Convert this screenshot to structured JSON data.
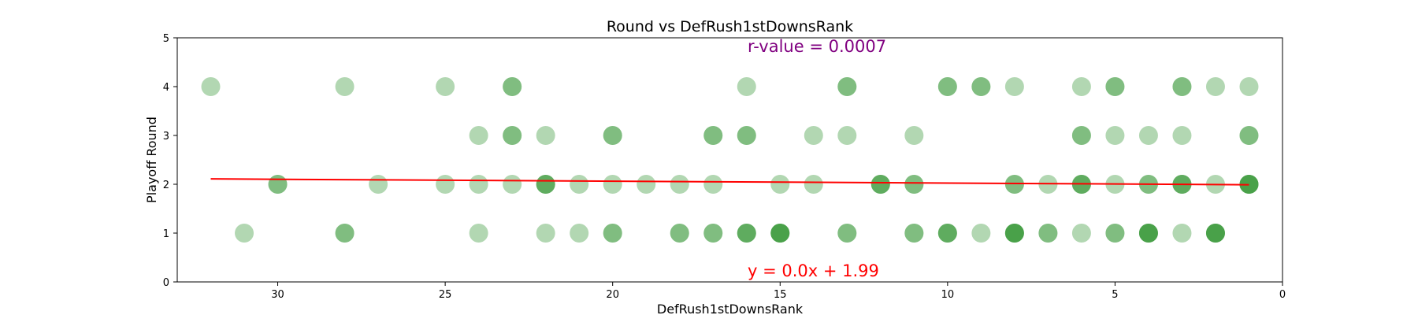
{
  "chart_data": {
    "type": "scatter",
    "title": "Round vs DefRush1stDownsRank",
    "xlabel": "DefRush1stDownsRank",
    "ylabel": "Playoff Round",
    "xlim": [
      33,
      0
    ],
    "ylim": [
      0,
      5
    ],
    "x_inverted": true,
    "xticks": [
      30,
      25,
      20,
      15,
      10,
      5,
      0
    ],
    "yticks": [
      0,
      1,
      2,
      3,
      4,
      5
    ],
    "marker_color": "#228b22",
    "marker_alpha": 0.35,
    "line_color": "#ff0000",
    "points": [
      {
        "x": 32,
        "y": 4
      },
      {
        "x": 28,
        "y": 4
      },
      {
        "x": 25,
        "y": 4
      },
      {
        "x": 23,
        "y": 4
      },
      {
        "x": 23,
        "y": 4
      },
      {
        "x": 16,
        "y": 4
      },
      {
        "x": 13,
        "y": 4
      },
      {
        "x": 13,
        "y": 4
      },
      {
        "x": 10,
        "y": 4
      },
      {
        "x": 10,
        "y": 4
      },
      {
        "x": 9,
        "y": 4
      },
      {
        "x": 9,
        "y": 4
      },
      {
        "x": 8,
        "y": 4
      },
      {
        "x": 6,
        "y": 4
      },
      {
        "x": 5,
        "y": 4
      },
      {
        "x": 5,
        "y": 4
      },
      {
        "x": 3,
        "y": 4
      },
      {
        "x": 3,
        "y": 4
      },
      {
        "x": 2,
        "y": 4
      },
      {
        "x": 1,
        "y": 4
      },
      {
        "x": 24,
        "y": 3
      },
      {
        "x": 23,
        "y": 3
      },
      {
        "x": 23,
        "y": 3
      },
      {
        "x": 22,
        "y": 3
      },
      {
        "x": 20,
        "y": 3
      },
      {
        "x": 20,
        "y": 3
      },
      {
        "x": 17,
        "y": 3
      },
      {
        "x": 17,
        "y": 3
      },
      {
        "x": 16,
        "y": 3
      },
      {
        "x": 16,
        "y": 3
      },
      {
        "x": 14,
        "y": 3
      },
      {
        "x": 13,
        "y": 3
      },
      {
        "x": 11,
        "y": 3
      },
      {
        "x": 6,
        "y": 3
      },
      {
        "x": 6,
        "y": 3
      },
      {
        "x": 5,
        "y": 3
      },
      {
        "x": 4,
        "y": 3
      },
      {
        "x": 3,
        "y": 3
      },
      {
        "x": 1,
        "y": 3
      },
      {
        "x": 1,
        "y": 3
      },
      {
        "x": 30,
        "y": 2
      },
      {
        "x": 30,
        "y": 2
      },
      {
        "x": 27,
        "y": 2
      },
      {
        "x": 25,
        "y": 2
      },
      {
        "x": 24,
        "y": 2
      },
      {
        "x": 23,
        "y": 2
      },
      {
        "x": 22,
        "y": 2
      },
      {
        "x": 22,
        "y": 2
      },
      {
        "x": 22,
        "y": 2
      },
      {
        "x": 21,
        "y": 2
      },
      {
        "x": 20,
        "y": 2
      },
      {
        "x": 19,
        "y": 2
      },
      {
        "x": 18,
        "y": 2
      },
      {
        "x": 17,
        "y": 2
      },
      {
        "x": 15,
        "y": 2
      },
      {
        "x": 14,
        "y": 2
      },
      {
        "x": 12,
        "y": 2
      },
      {
        "x": 12,
        "y": 2
      },
      {
        "x": 12,
        "y": 2
      },
      {
        "x": 11,
        "y": 2
      },
      {
        "x": 11,
        "y": 2
      },
      {
        "x": 8,
        "y": 2
      },
      {
        "x": 8,
        "y": 2
      },
      {
        "x": 7,
        "y": 2
      },
      {
        "x": 6,
        "y": 2
      },
      {
        "x": 6,
        "y": 2
      },
      {
        "x": 6,
        "y": 2
      },
      {
        "x": 5,
        "y": 2
      },
      {
        "x": 4,
        "y": 2
      },
      {
        "x": 4,
        "y": 2
      },
      {
        "x": 3,
        "y": 2
      },
      {
        "x": 3,
        "y": 2
      },
      {
        "x": 3,
        "y": 2
      },
      {
        "x": 2,
        "y": 2
      },
      {
        "x": 1,
        "y": 2
      },
      {
        "x": 1,
        "y": 2
      },
      {
        "x": 1,
        "y": 2
      },
      {
        "x": 1,
        "y": 2
      },
      {
        "x": 31,
        "y": 1
      },
      {
        "x": 28,
        "y": 1
      },
      {
        "x": 28,
        "y": 1
      },
      {
        "x": 24,
        "y": 1
      },
      {
        "x": 22,
        "y": 1
      },
      {
        "x": 21,
        "y": 1
      },
      {
        "x": 20,
        "y": 1
      },
      {
        "x": 20,
        "y": 1
      },
      {
        "x": 18,
        "y": 1
      },
      {
        "x": 18,
        "y": 1
      },
      {
        "x": 17,
        "y": 1
      },
      {
        "x": 17,
        "y": 1
      },
      {
        "x": 16,
        "y": 1
      },
      {
        "x": 16,
        "y": 1
      },
      {
        "x": 16,
        "y": 1
      },
      {
        "x": 15,
        "y": 1
      },
      {
        "x": 15,
        "y": 1
      },
      {
        "x": 15,
        "y": 1
      },
      {
        "x": 15,
        "y": 1
      },
      {
        "x": 13,
        "y": 1
      },
      {
        "x": 13,
        "y": 1
      },
      {
        "x": 11,
        "y": 1
      },
      {
        "x": 11,
        "y": 1
      },
      {
        "x": 10,
        "y": 1
      },
      {
        "x": 10,
        "y": 1
      },
      {
        "x": 10,
        "y": 1
      },
      {
        "x": 9,
        "y": 1
      },
      {
        "x": 8,
        "y": 1
      },
      {
        "x": 8,
        "y": 1
      },
      {
        "x": 8,
        "y": 1
      },
      {
        "x": 8,
        "y": 1
      },
      {
        "x": 7,
        "y": 1
      },
      {
        "x": 7,
        "y": 1
      },
      {
        "x": 6,
        "y": 1
      },
      {
        "x": 5,
        "y": 1
      },
      {
        "x": 5,
        "y": 1
      },
      {
        "x": 4,
        "y": 1
      },
      {
        "x": 4,
        "y": 1
      },
      {
        "x": 4,
        "y": 1
      },
      {
        "x": 4,
        "y": 1
      },
      {
        "x": 3,
        "y": 1
      },
      {
        "x": 2,
        "y": 1
      },
      {
        "x": 2,
        "y": 1
      },
      {
        "x": 2,
        "y": 1
      },
      {
        "x": 2,
        "y": 1
      }
    ],
    "regression": {
      "x_range": [
        32,
        1
      ],
      "y_at_start": 2.11,
      "y_at_end": 1.99
    },
    "annotations": {
      "equation": "y = 0.0x + 1.99",
      "r_value": "r-value = 0.0007",
      "equation_color": "#ff0000",
      "r_value_color": "#800080"
    }
  }
}
